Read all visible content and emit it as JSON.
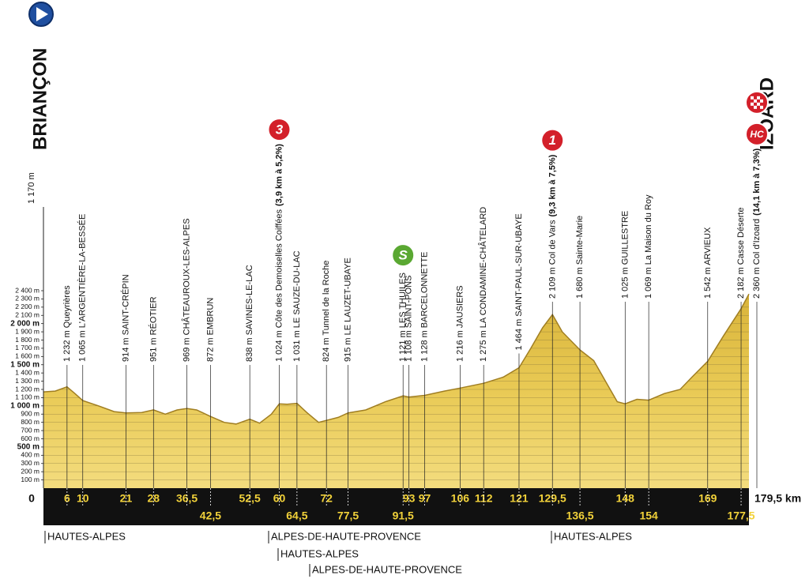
{
  "chart_data": {
    "type": "area",
    "start": "BRIANÇON",
    "finish": "IZOARD",
    "color": "#e6c245",
    "x": [
      0,
      3,
      6,
      8,
      10,
      14,
      18,
      21,
      25,
      28,
      31,
      34,
      36.5,
      39,
      42.5,
      46,
      49,
      52.5,
      55,
      58,
      60,
      62,
      64.5,
      67,
      70,
      72,
      75,
      77.5,
      82,
      87,
      91.5,
      93,
      97,
      102,
      106,
      112,
      117,
      121,
      124,
      127,
      129.5,
      132,
      136.5,
      140,
      143,
      146,
      148,
      151,
      154,
      158,
      162,
      165,
      169,
      173,
      177.5,
      179.5
    ],
    "values": [
      1170,
      1180,
      1232,
      1150,
      1065,
      1000,
      930,
      914,
      920,
      951,
      900,
      950,
      969,
      950,
      872,
      800,
      780,
      838,
      790,
      900,
      1024,
      1020,
      1031,
      920,
      800,
      824,
      860,
      915,
      950,
      1050,
      1121,
      1108,
      1128,
      1180,
      1216,
      1275,
      1350,
      1464,
      1700,
      1950,
      2109,
      1900,
      1680,
      1550,
      1300,
      1050,
      1025,
      1080,
      1069,
      1150,
      1200,
      1350,
      1542,
      1850,
      2182,
      2360
    ],
    "xlim": [
      0,
      179.5
    ],
    "ylim": [
      0,
      2400
    ],
    "yticks": [
      {
        "value": 100,
        "label": "100 m"
      },
      {
        "value": 200,
        "label": "200 m"
      },
      {
        "value": 300,
        "label": "300 m"
      },
      {
        "value": 400,
        "label": "400 m"
      },
      {
        "value": 500,
        "label": "500 m"
      },
      {
        "value": 600,
        "label": "600 m"
      },
      {
        "value": 700,
        "label": "700 m"
      },
      {
        "value": 800,
        "label": "800 m"
      },
      {
        "value": 900,
        "label": "900 m"
      },
      {
        "value": 1000,
        "label": "1 000 m"
      },
      {
        "value": 1100,
        "label": "1 100 m"
      },
      {
        "value": 1200,
        "label": "1 200 m"
      },
      {
        "value": 1300,
        "label": "1 300 m"
      },
      {
        "value": 1400,
        "label": "1 400 m"
      },
      {
        "value": 1500,
        "label": "1 500 m"
      },
      {
        "value": 1600,
        "label": "1 600 m"
      },
      {
        "value": 1700,
        "label": "1 700 m"
      },
      {
        "value": 1800,
        "label": "1 800 m"
      },
      {
        "value": 1900,
        "label": "1 900 m"
      },
      {
        "value": 2000,
        "label": "2 000 m"
      },
      {
        "value": 2100,
        "label": "2 100 m"
      },
      {
        "value": 2200,
        "label": "2 200 m"
      },
      {
        "value": 2300,
        "label": "2 300 m"
      },
      {
        "value": 2400,
        "label": "2 400 m"
      }
    ],
    "xticks": [
      0,
      6,
      10,
      21,
      28,
      {
        "value": 36.5,
        "label": "36,5"
      },
      {
        "value": 42.5,
        "label": "42,5"
      },
      {
        "value": 52.5,
        "label": "52,5"
      },
      60,
      {
        "value": 64.5,
        "label": "64,5"
      },
      72,
      {
        "value": 77.5,
        "label": "77,5"
      },
      {
        "value": 91.5,
        "label": "91,5"
      },
      93,
      97,
      106,
      112,
      121,
      {
        "value": 129.5,
        "label": "129,5"
      },
      {
        "value": 136.5,
        "label": "136,5"
      },
      148,
      154,
      169,
      {
        "value": 177.5,
        "label": "177,5"
      },
      {
        "value": 179.5,
        "label": "179,5 km"
      }
    ],
    "waypoints": [
      {
        "label": "1 170 m"
      },
      {
        "label": "1 232 m Queyrières"
      },
      {
        "label": "1 065 m L'ARGENTIÈRE-LA-BESSÉE"
      },
      {
        "label": "914 m SAINT-CRÉPIN"
      },
      {
        "label": "951 m RÉOTIER"
      },
      {
        "label": "969 m CHÂTEAUROUX-LES-ALPES"
      },
      {
        "label": "872 m EMBRUN"
      },
      {
        "label": "838 m SAVINES-LE-LAC"
      },
      {
        "label": "1 024 m Côte des Demoiselles Coiffées",
        "climb": "(3,9 km à 5,2%)",
        "category": "3"
      },
      {
        "label": "1 031 m LE SAUZE-DU-LAC"
      },
      {
        "label": "824 m Tunnel de la Roche"
      },
      {
        "label": "915 m LE LAUZET-UBAYE"
      },
      {
        "label": "1 121 m LES THUILES",
        "category": "S"
      },
      {
        "label": "1 108 m SAINT-PONS"
      },
      {
        "label": "1 128 m BARCELONNETTE"
      },
      {
        "label": "1 216 m JAUSIERS"
      },
      {
        "label": "1 275 m LA CONDAMINE-CHÂTELARD"
      },
      {
        "label": "1 464 m SAINT-PAUL-SUR-UBAYE"
      },
      {
        "label": "2 109 m Col de Vars",
        "climb": "(9,3 km à 7,5%)",
        "category": "1"
      },
      {
        "label": "1 680 m Sainte-Marie"
      },
      {
        "label": "1 025 m GUILLESTRE"
      },
      {
        "label": "1 069 m La Maison du Roy"
      },
      {
        "label": "1 542 m ARVIEUX"
      },
      {
        "label": "2 182 m Casse Déserte"
      },
      {
        "label": "2 360 m Col d'Izoard",
        "climb": "(14,1 km à 7,3%)",
        "category": "HC"
      }
    ],
    "departments": [
      "HAUTES-ALPES",
      "ALPES-DE-HAUTE-PROVENCE",
      "HAUTES-ALPES",
      "ALPES-DE-HAUTE-PROVENCE",
      "HAUTES-ALPES"
    ]
  }
}
